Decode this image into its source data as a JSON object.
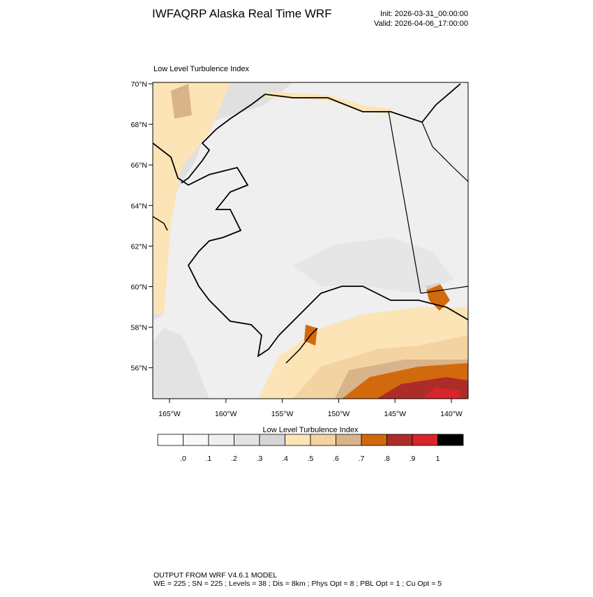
{
  "header": {
    "title": "IWFAQRP Alaska Real Time WRF",
    "init": "Init: 2026-03-31_00:00:00",
    "valid": "Valid: 2026-04-06_17:00:00"
  },
  "map": {
    "label": "Low Level Turbulence Index",
    "lat_labels": [
      "70°N",
      "68°N",
      "66°N",
      "64°N",
      "62°N",
      "60°N",
      "58°N",
      "56°N"
    ],
    "lon_labels": [
      "165°W",
      "160°W",
      "155°W",
      "150°W",
      "145°W",
      "140°W"
    ]
  },
  "colorbar": {
    "title": "Low Level Turbulence Index",
    "colors": [
      "#ffffff",
      "#f8f8f8",
      "#efefef",
      "#e3e3e3",
      "#d6d6d6",
      "#fde4b6",
      "#f4d3a3",
      "#d9b38a",
      "#d2690c",
      "#ad2c2a",
      "#d9242a",
      "#000000"
    ],
    "labels": [
      ".0",
      ".1",
      ".2",
      ".3",
      ".4",
      ".5",
      ".6",
      ".7",
      ".8",
      ".9",
      "1"
    ]
  },
  "footer": {
    "line1": "OUTPUT FROM WRF V4.6.1 MODEL",
    "line2": "WE = 225 ; SN = 225 ; Levels = 38 ; Dis = 8km ; Phys Opt = 8 ; PBL Opt = 1 ; Cu Opt = 5"
  }
}
